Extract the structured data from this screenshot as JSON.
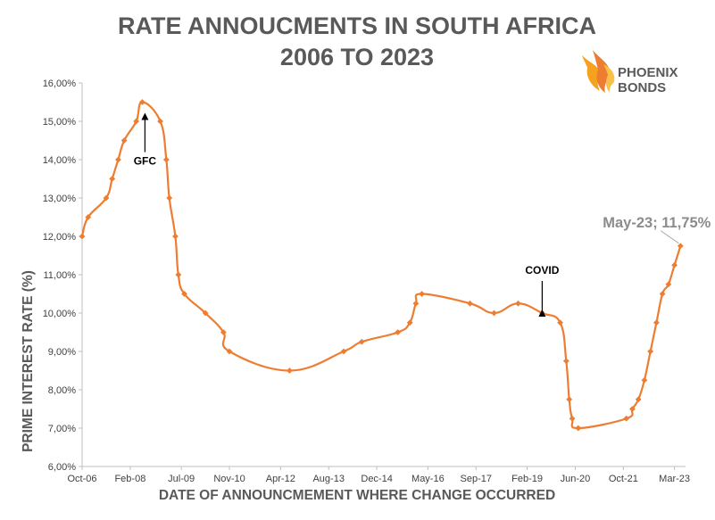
{
  "chart_data": {
    "type": "line",
    "title_line1": "RATE ANNOUCMENTS IN SOUTH AFRICA",
    "title_line2": "2006 TO 2023",
    "xlabel": "DATE OF ANNOUNCMEMENT WHERE CHANGE OCCURRED",
    "ylabel": "PRIME INTEREST RATE (%)",
    "ylim": [
      6,
      16
    ],
    "yticks": [
      "6,00%",
      "7,00%",
      "8,00%",
      "9,00%",
      "10,00%",
      "11,00%",
      "12,00%",
      "13,00%",
      "14,00%",
      "15,00%",
      "16,00%"
    ],
    "xticks": [
      {
        "date": "2006-10",
        "label": "Oct-06"
      },
      {
        "date": "2008-02",
        "label": "Feb-08"
      },
      {
        "date": "2009-07",
        "label": "Jul-09"
      },
      {
        "date": "2010-11",
        "label": "Nov-10"
      },
      {
        "date": "2012-04",
        "label": "Apr-12"
      },
      {
        "date": "2013-08",
        "label": "Aug-13"
      },
      {
        "date": "2014-12",
        "label": "Dec-14"
      },
      {
        "date": "2016-05",
        "label": "May-16"
      },
      {
        "date": "2017-09",
        "label": "Sep-17"
      },
      {
        "date": "2019-02",
        "label": "Feb-19"
      },
      {
        "date": "2020-06",
        "label": "Jun-20"
      },
      {
        "date": "2021-10",
        "label": "Oct-21"
      },
      {
        "date": "2023-03",
        "label": "Mar-23"
      }
    ],
    "series": [
      {
        "color": "#ed7d31",
        "points": [
          {
            "date": "2006-10",
            "value": 12.0
          },
          {
            "date": "2006-12",
            "value": 12.5
          },
          {
            "date": "2007-06",
            "value": 13.0
          },
          {
            "date": "2007-08",
            "value": 13.5
          },
          {
            "date": "2007-10",
            "value": 14.0
          },
          {
            "date": "2007-12",
            "value": 14.5
          },
          {
            "date": "2008-04",
            "value": 15.0
          },
          {
            "date": "2008-06",
            "value": 15.5
          },
          {
            "date": "2008-12",
            "value": 15.0
          },
          {
            "date": "2009-02",
            "value": 14.0
          },
          {
            "date": "2009-03",
            "value": 13.0
          },
          {
            "date": "2009-05",
            "value": 12.0
          },
          {
            "date": "2009-06",
            "value": 11.0
          },
          {
            "date": "2009-08",
            "value": 10.5
          },
          {
            "date": "2010-03",
            "value": 10.0
          },
          {
            "date": "2010-09",
            "value": 9.5
          },
          {
            "date": "2010-11",
            "value": 9.0
          },
          {
            "date": "2012-07",
            "value": 8.5
          },
          {
            "date": "2014-01",
            "value": 9.0
          },
          {
            "date": "2014-07",
            "value": 9.25
          },
          {
            "date": "2015-07",
            "value": 9.5
          },
          {
            "date": "2015-11",
            "value": 9.75
          },
          {
            "date": "2016-01",
            "value": 10.25
          },
          {
            "date": "2016-03",
            "value": 10.5
          },
          {
            "date": "2017-07",
            "value": 10.25
          },
          {
            "date": "2018-03",
            "value": 10.0
          },
          {
            "date": "2018-11",
            "value": 10.25
          },
          {
            "date": "2019-07",
            "value": 10.0
          },
          {
            "date": "2020-01",
            "value": 9.75
          },
          {
            "date": "2020-03",
            "value": 8.75
          },
          {
            "date": "2020-04",
            "value": 7.75
          },
          {
            "date": "2020-05",
            "value": 7.25
          },
          {
            "date": "2020-07",
            "value": 7.0
          },
          {
            "date": "2021-11",
            "value": 7.25
          },
          {
            "date": "2022-01",
            "value": 7.5
          },
          {
            "date": "2022-03",
            "value": 7.75
          },
          {
            "date": "2022-05",
            "value": 8.25
          },
          {
            "date": "2022-07",
            "value": 9.0
          },
          {
            "date": "2022-09",
            "value": 9.75
          },
          {
            "date": "2022-11",
            "value": 10.5
          },
          {
            "date": "2023-01",
            "value": 10.75
          },
          {
            "date": "2023-03",
            "value": 11.25
          },
          {
            "date": "2023-05",
            "value": 11.75
          }
        ]
      }
    ],
    "annotations": [
      {
        "text": "GFC",
        "date": "2008-06",
        "value": 15.5
      },
      {
        "text": "COVID",
        "date": "2019-07",
        "value": 10.0
      }
    ],
    "callout": {
      "text": "May-23; 11,75%",
      "date": "2023-05",
      "value": 11.75
    },
    "grid": false,
    "legend": "none"
  },
  "logo": {
    "line1": "PHOENIX",
    "line2": "BONDS",
    "icon": "phoenix-flame-icon"
  }
}
